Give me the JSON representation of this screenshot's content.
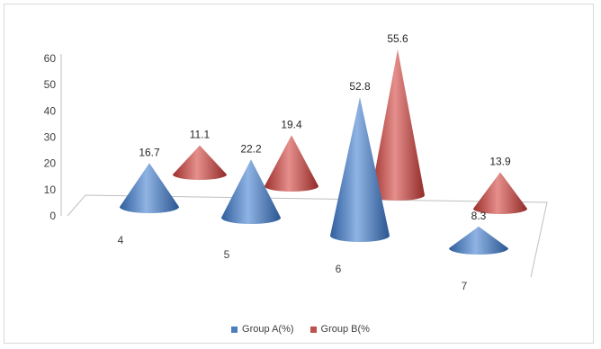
{
  "chart_data": {
    "type": "3d-cone-column",
    "title": "",
    "xlabel": "",
    "ylabel": "",
    "categories": [
      "4",
      "5",
      "6",
      "7"
    ],
    "y_ticks": [
      "0",
      "10",
      "20",
      "30",
      "40",
      "50",
      "60"
    ],
    "ylim": [
      0,
      60
    ],
    "series": [
      {
        "name": "Group A(%)",
        "values": [
          16.7,
          22.2,
          52.8,
          8.3
        ],
        "labels": [
          "16.7",
          "22.2",
          "52.8",
          "8.3"
        ],
        "color": "#4a7ebf"
      },
      {
        "name": "Group B(%",
        "values": [
          11.1,
          19.4,
          55.6,
          13.9
        ],
        "labels": [
          "11.1",
          "19.4",
          "55.6",
          "13.9"
        ],
        "color": "#c0504d"
      }
    ],
    "legend_position": "bottom",
    "grid": false
  }
}
